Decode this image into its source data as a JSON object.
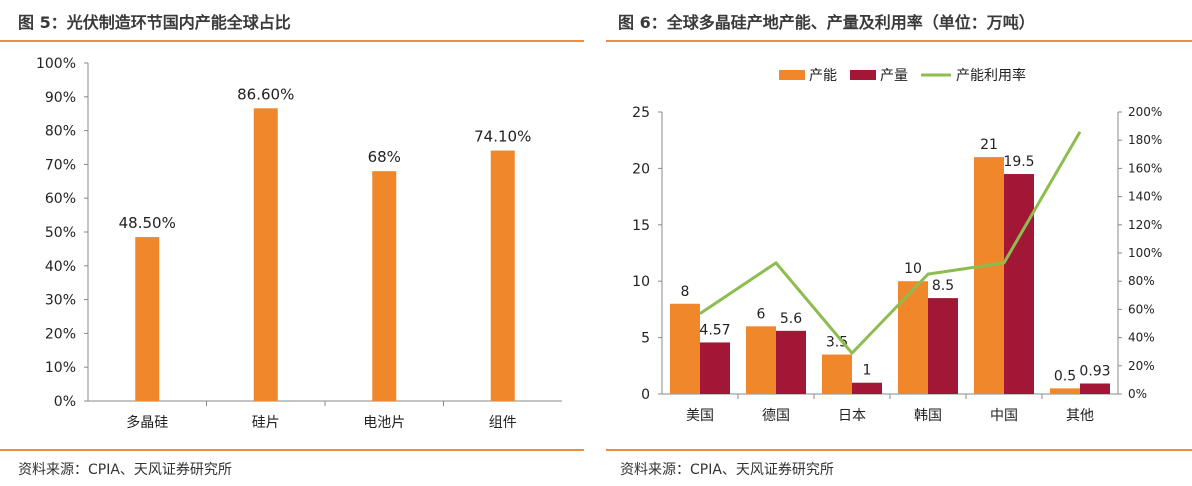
{
  "colors": {
    "orange": "#f0882b",
    "crimson": "#a21735",
    "green": "#8dbd4f",
    "rule": "#ef8d45"
  },
  "left": {
    "title": "图 5：光伏制造环节国内产能全球占比",
    "source": "资料来源：CPIA、天风证券研究所"
  },
  "right": {
    "title": "图 6：全球多晶硅产地产能、产量及利用率（单位：万吨）",
    "source": "资料来源：CPIA、天风证券研究所"
  },
  "chart_data": [
    {
      "type": "bar",
      "title": "光伏制造环节国内产能全球占比",
      "categories": [
        "多晶硅",
        "硅片",
        "电池片",
        "组件"
      ],
      "values": [
        48.5,
        86.6,
        68,
        74.1
      ],
      "labels": [
        "48.50%",
        "86.60%",
        "68%",
        "74.10%"
      ],
      "ylim": [
        0,
        100
      ],
      "yticks": [
        "0%",
        "10%",
        "20%",
        "30%",
        "40%",
        "50%",
        "60%",
        "70%",
        "80%",
        "90%",
        "100%"
      ],
      "grid": false,
      "legend": "none"
    },
    {
      "type": "bar",
      "title": "全球多晶硅产地产能、产量及利用率（单位：万吨）",
      "categories": [
        "美国",
        "德国",
        "日本",
        "韩国",
        "中国",
        "其他"
      ],
      "series": [
        {
          "name": "产能",
          "type": "bar",
          "axis": "left",
          "values": [
            8,
            6,
            3.5,
            10,
            21,
            0.5
          ],
          "labels": [
            "8",
            "6",
            "3.5",
            "10",
            "21",
            "0.5"
          ]
        },
        {
          "name": "产量",
          "type": "bar",
          "axis": "left",
          "values": [
            4.57,
            5.6,
            1,
            8.5,
            19.5,
            0.93
          ],
          "labels": [
            "4.57",
            "5.6",
            "1",
            "8.5",
            "19.5",
            "0.93"
          ]
        },
        {
          "name": "产能利用率",
          "type": "line",
          "axis": "right",
          "values": [
            57,
            93,
            29,
            85,
            93,
            186
          ]
        }
      ],
      "ylim": [
        0,
        25
      ],
      "yticks": [
        "0",
        "5",
        "10",
        "15",
        "20",
        "25"
      ],
      "y2lim": [
        0,
        200
      ],
      "y2ticks": [
        "0%",
        "20%",
        "40%",
        "60%",
        "80%",
        "100%",
        "120%",
        "140%",
        "160%",
        "180%",
        "200%"
      ],
      "grid": false,
      "legend": "top-center"
    }
  ]
}
